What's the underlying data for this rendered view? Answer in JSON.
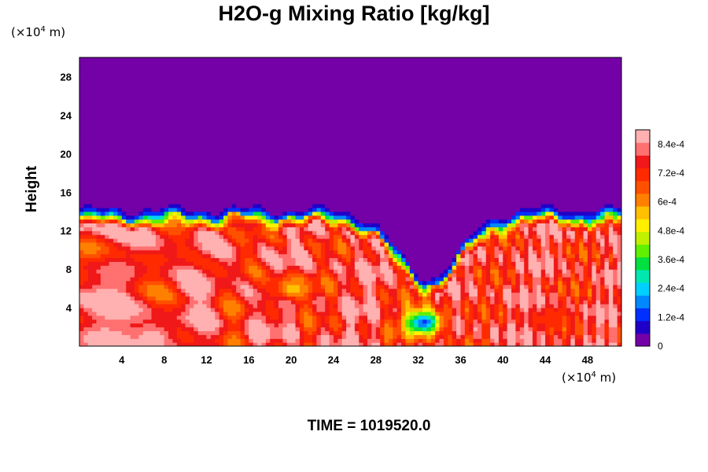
{
  "chart_data": {
    "type": "heatmap",
    "title": "H2O-g Mixing Ratio [kg/kg]",
    "ylabel": "Height",
    "y_unit_prefix": "(×10",
    "y_unit_exp": "4",
    "y_unit_suffix": " m)",
    "x_unit_prefix": "(×10",
    "x_unit_exp": "4",
    "x_unit_suffix": " m)",
    "footer": "TIME = 1019520.0",
    "xlim": [
      0,
      51.2
    ],
    "ylim": [
      0,
      30
    ],
    "x_ticks": [
      "4",
      "8",
      "12",
      "16",
      "20",
      "24",
      "28",
      "32",
      "36",
      "40",
      "44",
      "48"
    ],
    "y_ticks": [
      "4",
      "8",
      "12",
      "16",
      "20",
      "24",
      "28"
    ],
    "colorbar": {
      "min": 0,
      "max": 0.0009,
      "labels": [
        "0",
        "1.2e-4",
        "2.4e-4",
        "3.6e-4",
        "4.8e-4",
        "6e-4",
        "7.2e-4",
        "8.4e-4"
      ],
      "colors": [
        "#7400a8",
        "#2000c8",
        "#0030ff",
        "#0088ff",
        "#00d0ff",
        "#00e8b0",
        "#00e040",
        "#60f000",
        "#c0f000",
        "#fff000",
        "#ffc000",
        "#ff8000",
        "#ff5000",
        "#ff2a00",
        "#f01818",
        "#ff7070",
        "#ffb0b0"
      ]
    },
    "field": {
      "background_value": 0,
      "cloud_top_height_left": 13.5,
      "cloud_top_height_right": 13.5,
      "trough_center_x": 33,
      "trough_bottom_height": 6.5,
      "moist_core_value": 0.00078,
      "blob_features": [
        {
          "x": 32.5,
          "y": 2.5,
          "value": 0.00015
        },
        {
          "x": 44.5,
          "y": 3,
          "value": 0.00072
        },
        {
          "x": 7,
          "y": 1,
          "value": 0.00088
        },
        {
          "x": 20,
          "y": 6,
          "value": 0.00055
        }
      ]
    }
  }
}
